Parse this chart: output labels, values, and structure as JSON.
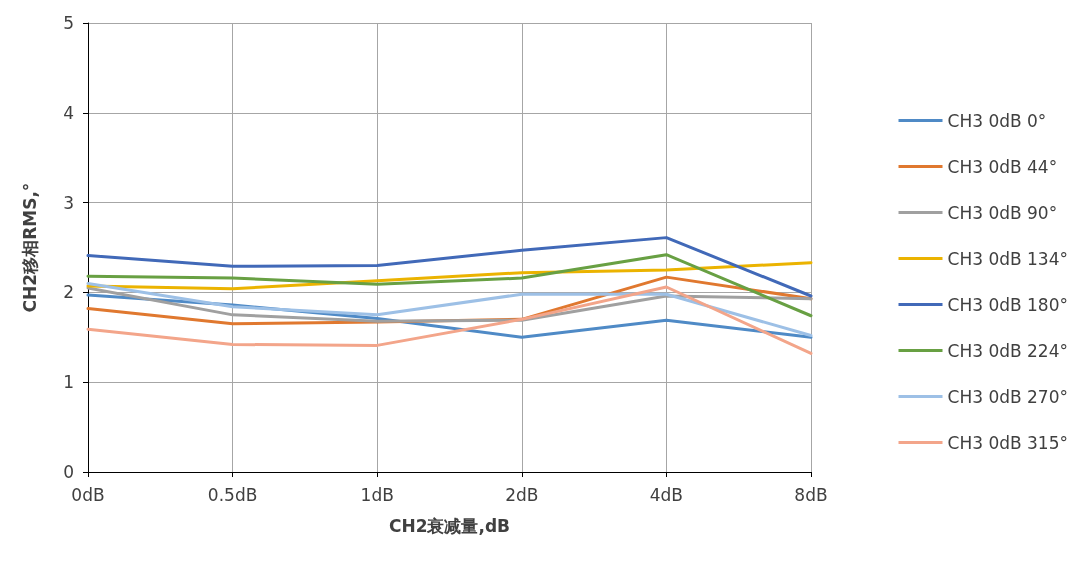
{
  "chart_data": {
    "type": "line",
    "xlabel": "CH2衰减量,dB",
    "ylabel": "CH2移相RMS,°",
    "categories": [
      "0dB",
      "0.5dB",
      "1dB",
      "2dB",
      "4dB",
      "8dB"
    ],
    "ylim": [
      0,
      5
    ],
    "yticks": [
      0,
      1,
      2,
      3,
      4,
      5
    ],
    "grid": true,
    "legend": "right",
    "marker": "none",
    "series": [
      {
        "name": "CH3 0dB 0°",
        "color": "#4f8ac6",
        "values": [
          1.97,
          1.86,
          1.71,
          1.5,
          1.69,
          1.5
        ]
      },
      {
        "name": "CH3 0dB 44°",
        "color": "#e0782f",
        "values": [
          1.82,
          1.65,
          1.67,
          1.7,
          2.17,
          1.93
        ]
      },
      {
        "name": "CH3 0dB 90°",
        "color": "#a0a0a0",
        "values": [
          2.05,
          1.75,
          1.68,
          1.69,
          1.96,
          1.93
        ]
      },
      {
        "name": "CH3 0dB 134°",
        "color": "#ebb300",
        "values": [
          2.07,
          2.04,
          2.13,
          2.22,
          2.25,
          2.33
        ]
      },
      {
        "name": "CH3 0dB 180°",
        "color": "#4169b8",
        "values": [
          2.41,
          2.29,
          2.3,
          2.47,
          2.61,
          1.96
        ]
      },
      {
        "name": "CH3 0dB 224°",
        "color": "#68a043",
        "values": [
          2.18,
          2.16,
          2.09,
          2.16,
          2.42,
          1.74
        ]
      },
      {
        "name": "CH3 0dB 270°",
        "color": "#9dc0e6",
        "values": [
          2.1,
          1.84,
          1.75,
          1.98,
          1.98,
          1.52
        ]
      },
      {
        "name": "CH3 0dB 315°",
        "color": "#f3a58a",
        "values": [
          1.59,
          1.42,
          1.41,
          1.7,
          2.06,
          1.32
        ]
      }
    ]
  }
}
